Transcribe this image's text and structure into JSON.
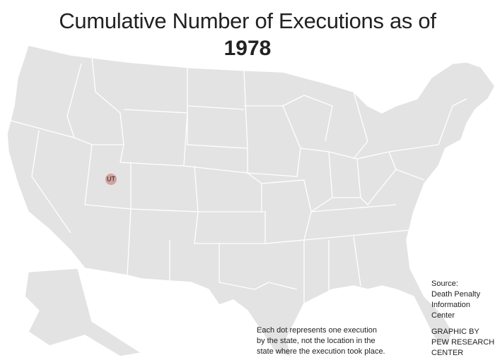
{
  "header": {
    "title": "Cumulative Number of Executions as of",
    "year": "1978"
  },
  "dots": [
    {
      "state": "UT",
      "count": 1
    }
  ],
  "note": [
    "Each dot represents one execution",
    "by the state, not the location in the",
    "state where the execution took place."
  ],
  "source": [
    "Source:",
    "Death Penalty",
    "Information",
    "Center"
  ],
  "credit": [
    "GRAPHIC BY",
    "PEW RESEARCH",
    "CENTER"
  ]
}
